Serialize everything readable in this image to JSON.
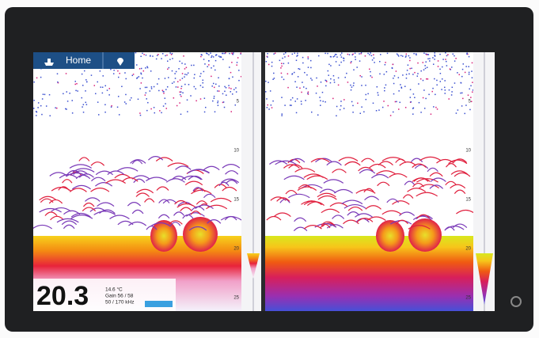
{
  "header": {
    "home_label": "Home"
  },
  "readout": {
    "depth": "20.3",
    "lines": [
      "14.6 °C",
      "Gain 56 / 58",
      "50 / 170 kHz"
    ]
  },
  "left_panel": {
    "depth_labels": [
      "5",
      "10",
      "15",
      "20",
      "25"
    ]
  },
  "right_panel": {
    "depth_labels": [
      "5",
      "10",
      "15",
      "20",
      "25"
    ]
  }
}
